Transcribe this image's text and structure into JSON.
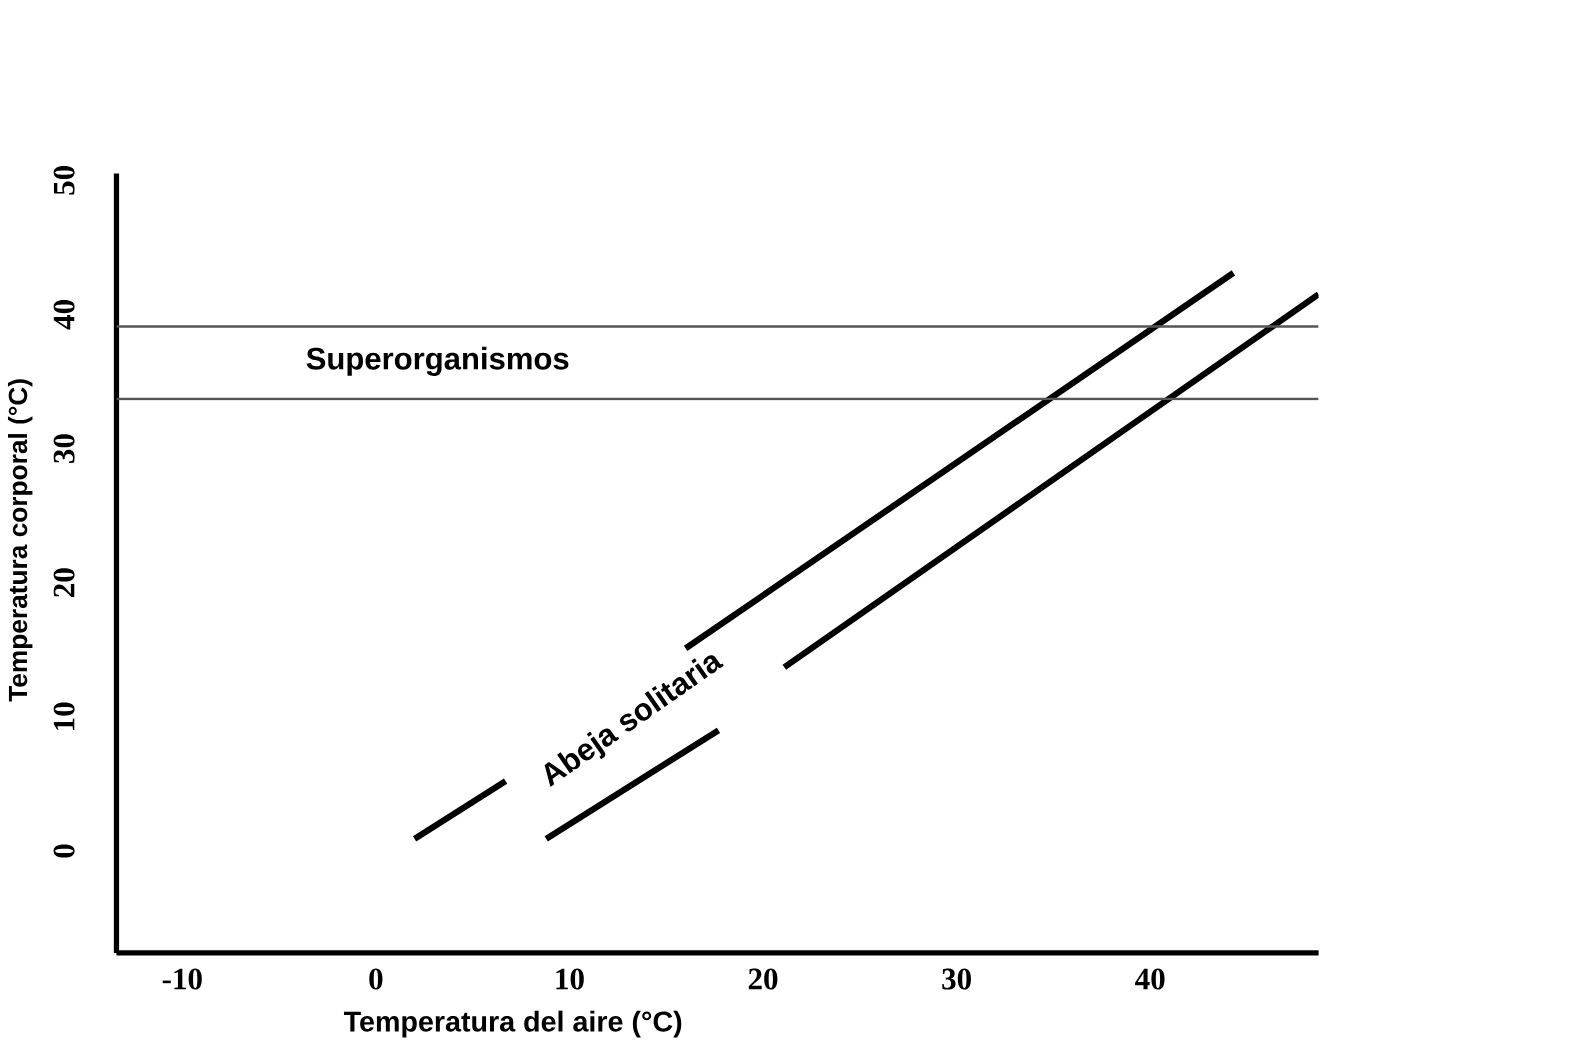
{
  "chart_data": {
    "type": "line",
    "xlabel": "Temperatura del aire (°C)",
    "ylabel": "Temperatura corporal (°C)",
    "xlim": [
      -13.4,
      48.7
    ],
    "ylim": [
      -7.6,
      50.5
    ],
    "xticks": [
      -10,
      0,
      10,
      20,
      30,
      40
    ],
    "yticks": [
      0,
      10,
      20,
      30,
      40,
      50
    ],
    "series": [
      {
        "color": "#000000",
        "x": [
          2.0,
          6.7,
          11.0,
          16.0,
          44.3
        ],
        "values": [
          0.9,
          5.2,
          null,
          15.1,
          43.1
        ]
      },
      {
        "color": "#000000",
        "x": [
          8.8,
          17.7,
          19.0,
          21.1,
          48.7
        ],
        "values": [
          0.9,
          9.0,
          null,
          13.7,
          41.5
        ]
      }
    ],
    "ref_lines": [
      {
        "axis": "y",
        "value": 39.1,
        "color": "#555555"
      },
      {
        "axis": "y",
        "value": 33.7,
        "color": "#555555"
      }
    ],
    "annotations": [
      "Superorganismos",
      "Abeja solitaria"
    ],
    "grid": false,
    "legend": false,
    "marker": "none",
    "line_style": "solid"
  }
}
